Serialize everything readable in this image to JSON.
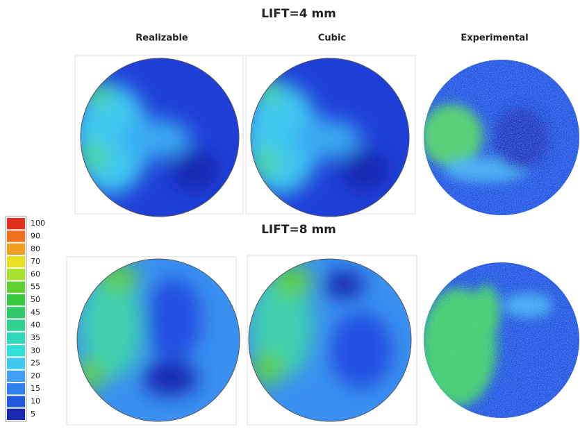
{
  "titles": [
    "LIFT=4 mm",
    "LIFT=8 mm"
  ],
  "columns": [
    "Realizable",
    "Cubic",
    "Experimental"
  ],
  "legend": {
    "levels": [
      100,
      90,
      80,
      70,
      60,
      55,
      50,
      45,
      40,
      35,
      30,
      25,
      20,
      15,
      10,
      5
    ],
    "colors": [
      "#e0301e",
      "#f07020",
      "#f0a020",
      "#e8e020",
      "#a8e030",
      "#60d030",
      "#38c840",
      "#30c868",
      "#30d090",
      "#30d8b8",
      "#30e0d8",
      "#40c8f0",
      "#40a0f5",
      "#3080f0",
      "#2058e0",
      "#1a28b0"
    ]
  }
}
